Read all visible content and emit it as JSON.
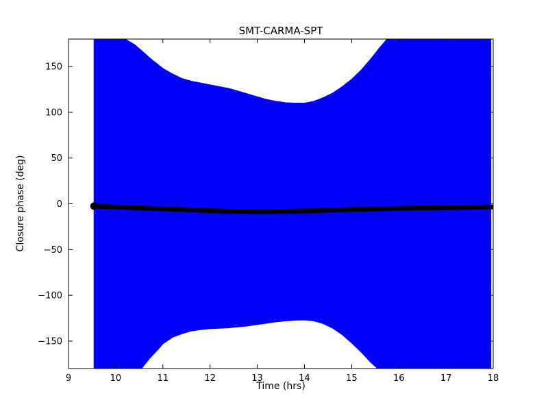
{
  "chart_data": {
    "type": "area",
    "title": "SMT-CARMA-SPT",
    "xlabel": "Time (hrs)",
    "ylabel": "Closure phase (deg)",
    "xlim": [
      9,
      18
    ],
    "ylim": [
      -180,
      180
    ],
    "xticks": [
      9,
      10,
      11,
      12,
      13,
      14,
      15,
      16,
      17,
      18
    ],
    "yticks": [
      -150,
      -100,
      -50,
      0,
      50,
      100,
      150
    ],
    "grid": false,
    "legend": "none",
    "envelope": {
      "name": "closure-phase-uncertainty-envelope",
      "color": "#0000ff",
      "upper": [
        [
          9.54,
          180
        ],
        [
          10.2,
          180
        ],
        [
          10.4,
          174
        ],
        [
          10.6,
          165
        ],
        [
          10.8,
          156
        ],
        [
          11.0,
          148
        ],
        [
          11.2,
          142
        ],
        [
          11.4,
          137
        ],
        [
          11.6,
          134
        ],
        [
          11.8,
          132
        ],
        [
          12.0,
          130
        ],
        [
          12.2,
          128
        ],
        [
          12.4,
          126
        ],
        [
          12.6,
          123
        ],
        [
          12.8,
          120
        ],
        [
          13.0,
          117
        ],
        [
          13.2,
          114
        ],
        [
          13.4,
          112
        ],
        [
          13.6,
          110.5
        ],
        [
          13.8,
          110
        ],
        [
          14.0,
          110
        ],
        [
          14.2,
          112
        ],
        [
          14.4,
          116
        ],
        [
          14.6,
          121
        ],
        [
          14.8,
          128
        ],
        [
          15.0,
          136
        ],
        [
          15.2,
          146
        ],
        [
          15.4,
          158
        ],
        [
          15.6,
          171
        ],
        [
          15.75,
          180
        ],
        [
          17.95,
          180
        ]
      ],
      "lower": [
        [
          9.54,
          -180
        ],
        [
          10.55,
          -180
        ],
        [
          10.7,
          -170
        ],
        [
          10.9,
          -159
        ],
        [
          11.0,
          -153
        ],
        [
          11.2,
          -146
        ],
        [
          11.4,
          -142
        ],
        [
          11.6,
          -139
        ],
        [
          11.8,
          -137.5
        ],
        [
          12.0,
          -136.5
        ],
        [
          12.2,
          -136
        ],
        [
          12.4,
          -135.5
        ],
        [
          12.6,
          -134.5
        ],
        [
          12.8,
          -133.5
        ],
        [
          13.0,
          -132
        ],
        [
          13.2,
          -130.5
        ],
        [
          13.4,
          -129
        ],
        [
          13.6,
          -128
        ],
        [
          13.8,
          -127.2
        ],
        [
          14.0,
          -127
        ],
        [
          14.2,
          -128
        ],
        [
          14.4,
          -131
        ],
        [
          14.6,
          -136
        ],
        [
          14.8,
          -143
        ],
        [
          15.0,
          -152
        ],
        [
          15.2,
          -162
        ],
        [
          15.4,
          -173
        ],
        [
          15.55,
          -180
        ],
        [
          17.95,
          -180
        ]
      ]
    },
    "line": {
      "name": "model-closure-phase",
      "color": "#000000",
      "width": 7,
      "points": [
        [
          9.54,
          -2.5
        ],
        [
          10.0,
          -3.5
        ],
        [
          10.5,
          -4.5
        ],
        [
          11.0,
          -5.5
        ],
        [
          11.5,
          -6.5
        ],
        [
          12.0,
          -7.5
        ],
        [
          12.5,
          -8.2
        ],
        [
          13.0,
          -8.5
        ],
        [
          13.5,
          -8.3
        ],
        [
          14.0,
          -7.8
        ],
        [
          14.5,
          -7.0
        ],
        [
          15.0,
          -6.2
        ],
        [
          15.5,
          -5.6
        ],
        [
          16.0,
          -5.0
        ],
        [
          16.5,
          -4.5
        ],
        [
          17.0,
          -4.2
        ],
        [
          17.5,
          -3.8
        ],
        [
          18.0,
          -3.5
        ]
      ]
    }
  }
}
